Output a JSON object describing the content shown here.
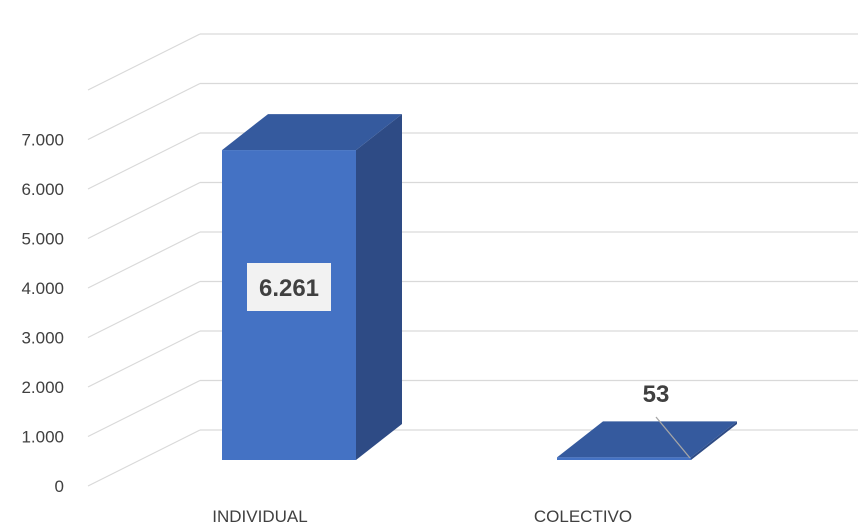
{
  "chart_data": {
    "type": "bar",
    "title": "",
    "xlabel": "",
    "ylabel": "",
    "categories": [
      "INDIVIDUAL",
      "COLECTIVO"
    ],
    "values": [
      6261,
      53
    ],
    "data_labels": [
      "6.261",
      "53"
    ],
    "ylim": [
      0,
      7000
    ],
    "y_ticks": [
      0,
      1000,
      2000,
      3000,
      4000,
      5000,
      6000,
      7000
    ],
    "y_tick_labels": [
      "0",
      "1.000",
      "2.000",
      "3.000",
      "4.000",
      "5.000",
      "6.000",
      "7.000"
    ],
    "grid": true,
    "style": "3d-column",
    "colors": {
      "bar_front": "#4472c4",
      "bar_side": "#2e4b85",
      "bar_top": "#355a9e",
      "grid": "#d9d9d9",
      "text": "#404040",
      "label_box": "#f2f2f2"
    }
  }
}
